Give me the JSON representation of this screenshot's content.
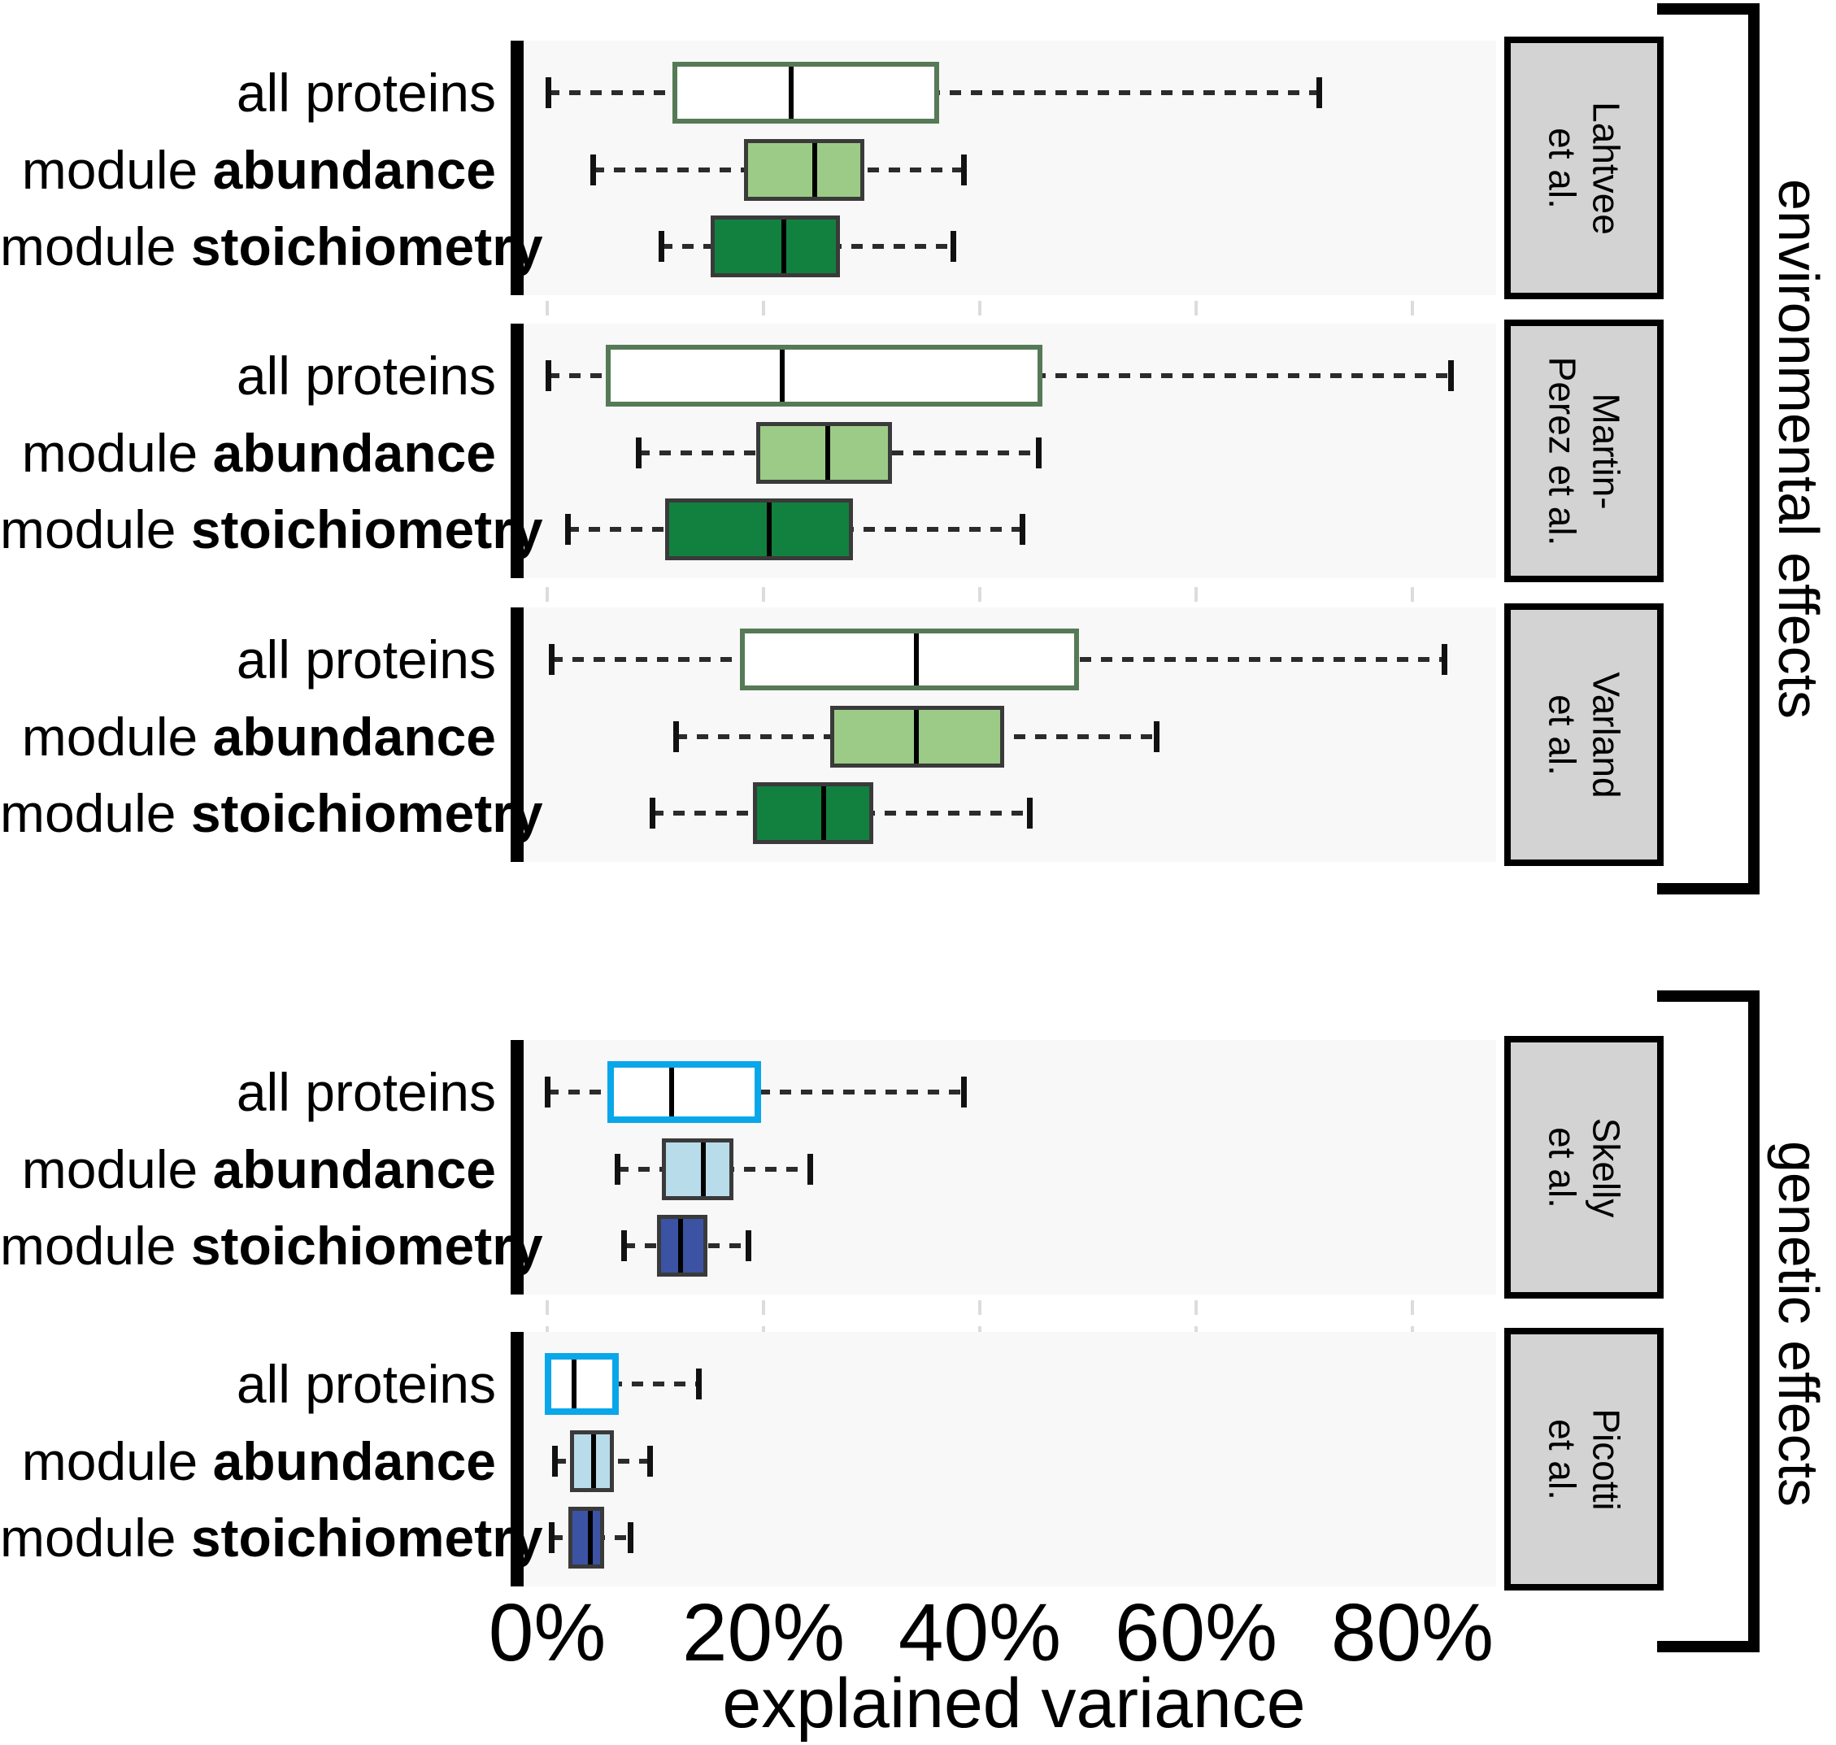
{
  "colors": {
    "panel_background": "#f8f8f8",
    "page_background": "#ffffff",
    "grid_dash": "#dcdcdc",
    "whisker": "#2b2b2b",
    "box_edge_gray": "#3a3a3a",
    "env_allproteins_border": "#567a56",
    "env_abundance_fill": "#9ccb87",
    "env_stoichiometry_fill": "#12813f",
    "gen_allproteins_border": "#09a7e9",
    "gen_abundance_fill": "#b8dcea",
    "gen_stoichiometry_fill": "#3c53a4",
    "median_line": "#000000",
    "study_box_fill": "#d3d3d3",
    "study_box_border": "#000000",
    "text": "#000000"
  },
  "chart_data": {
    "type": "boxplot",
    "orientation": "horizontal",
    "title": "",
    "xlabel": "explained variance",
    "x_ticks": [
      "0%",
      "20%",
      "40%",
      "60%",
      "80%"
    ],
    "x_tick_values": [
      0,
      20,
      40,
      60,
      80
    ],
    "xlim": [
      -2,
      88.5
    ],
    "grid": "vertical-dashed",
    "row_labels": [
      {
        "prefix": "all proteins",
        "bold": ""
      },
      {
        "prefix": "module ",
        "bold": "abundance"
      },
      {
        "prefix": "module ",
        "bold": "stoichiometry"
      }
    ],
    "groups": [
      {
        "group": "environmental effects",
        "studies": [
          {
            "study": "Lahtvee et al.",
            "label_lines": [
              "Lahtvee",
              "et al."
            ],
            "boxes": [
              {
                "category": "all proteins",
                "whisker_low": 0.1,
                "q1": 12.0,
                "median": 22.3,
                "q3": 35.8,
                "whisker_high": 71.3
              },
              {
                "category": "module abundance",
                "whisker_low": 4.2,
                "q1": 18.6,
                "median": 24.6,
                "q3": 28.9,
                "whisker_high": 38.5
              },
              {
                "category": "module stoichiometry",
                "whisker_low": 10.5,
                "q1": 15.5,
                "median": 21.7,
                "q3": 26.7,
                "whisker_high": 37.5
              }
            ]
          },
          {
            "study": "Martin-Perez et al.",
            "label_lines": [
              "Martin-",
              "Perez et al."
            ],
            "boxes": [
              {
                "category": "all proteins",
                "whisker_low": 0.1,
                "q1": 5.9,
                "median": 21.5,
                "q3": 45.3,
                "whisker_high": 83.5
              },
              {
                "category": "module abundance",
                "whisker_low": 8.4,
                "q1": 19.7,
                "median": 25.8,
                "q3": 31.5,
                "whisker_high": 45.4
              },
              {
                "category": "module stoichiometry",
                "whisker_low": 1.9,
                "q1": 11.3,
                "median": 20.4,
                "q3": 27.9,
                "whisker_high": 43.9
              }
            ]
          },
          {
            "study": "Varland et al.",
            "label_lines": [
              "Varland",
              "et al."
            ],
            "boxes": [
              {
                "category": "all proteins",
                "whisker_low": 0.4,
                "q1": 18.3,
                "median": 33.9,
                "q3": 48.7,
                "whisker_high": 82.9
              },
              {
                "category": "module abundance",
                "whisker_low": 11.9,
                "q1": 26.5,
                "median": 34.0,
                "q3": 41.9,
                "whisker_high": 56.3
              },
              {
                "category": "module stoichiometry",
                "whisker_low": 9.7,
                "q1": 19.4,
                "median": 25.4,
                "q3": 29.8,
                "whisker_high": 44.6
              }
            ]
          }
        ]
      },
      {
        "group": "genetic effects",
        "studies": [
          {
            "study": "Skelly et al.",
            "label_lines": [
              "Skelly",
              "et al."
            ],
            "boxes": [
              {
                "category": "all proteins",
                "whisker_low": 0.0,
                "q1": 6.2,
                "median": 11.1,
                "q3": 19.2,
                "whisker_high": 38.5
              },
              {
                "category": "module abundance",
                "whisker_low": 6.5,
                "q1": 11.0,
                "median": 14.3,
                "q3": 16.8,
                "whisker_high": 24.3
              },
              {
                "category": "module stoichiometry",
                "whisker_low": 7.1,
                "q1": 10.5,
                "median": 12.2,
                "q3": 14.4,
                "whisker_high": 18.6
              }
            ]
          },
          {
            "study": "Picotti et al.",
            "label_lines": [
              "Picotti",
              "et al."
            ],
            "boxes": [
              {
                "category": "all proteins",
                "whisker_low": 0.0,
                "q1": 0.4,
                "median": 2.1,
                "q3": 6.0,
                "whisker_high": 14.0
              },
              {
                "category": "module abundance",
                "whisker_low": 0.7,
                "q1": 2.5,
                "median": 4.1,
                "q3": 5.8,
                "whisker_high": 9.5
              },
              {
                "category": "module stoichiometry",
                "whisker_low": 0.4,
                "q1": 2.3,
                "median": 3.8,
                "q3": 4.9,
                "whisker_high": 7.7
              }
            ]
          }
        ]
      }
    ]
  }
}
